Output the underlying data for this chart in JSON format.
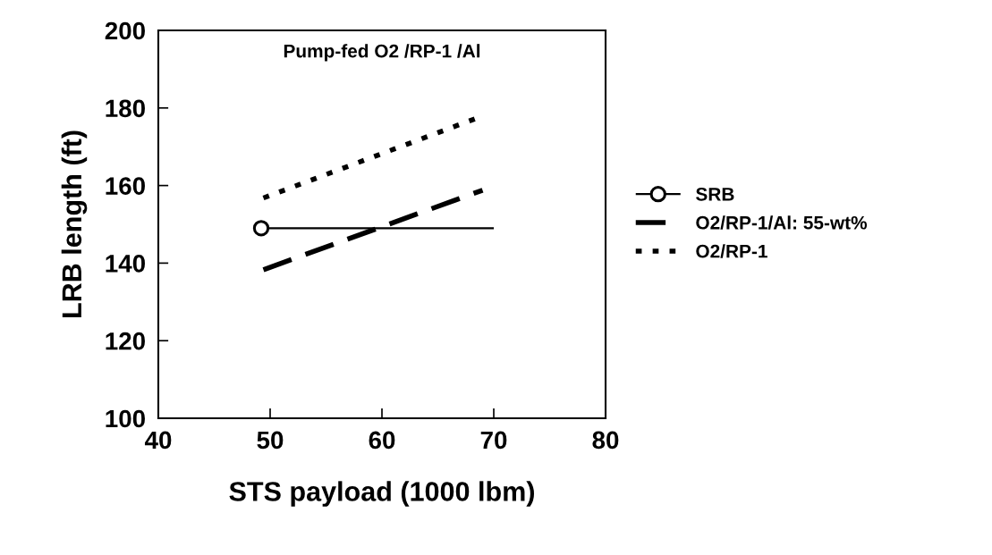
{
  "chart_data": {
    "type": "line",
    "title": "Pump-fed O2 /RP-1 /Al",
    "xlabel": "STS payload (1000 lbm)",
    "ylabel": "LRB length (ft)",
    "xlim": [
      40,
      80
    ],
    "xticks": [
      40,
      50,
      60,
      70,
      80
    ],
    "ylim": [
      100,
      200
    ],
    "yticks": [
      100,
      120,
      140,
      160,
      180,
      200
    ],
    "grid": false,
    "legend": "right",
    "series": [
      {
        "name": "SRB",
        "color": "#000000",
        "x": [
          49.2,
          70
        ],
        "values": [
          149,
          149
        ],
        "marker": "circle",
        "line_style": "solid"
      },
      {
        "name": "O2/RP-1/Al: 55-wt%",
        "color": "#000000",
        "x": [
          49.4,
          69.0
        ],
        "values": [
          138.3,
          158.8
        ],
        "marker": "none",
        "line_style": "dashed"
      },
      {
        "name": "O2/RP-1",
        "color": "#000000",
        "x": [
          49.4,
          68.6
        ],
        "values": [
          156.8,
          177.5
        ],
        "marker": "none",
        "line_style": "dotted"
      }
    ]
  }
}
